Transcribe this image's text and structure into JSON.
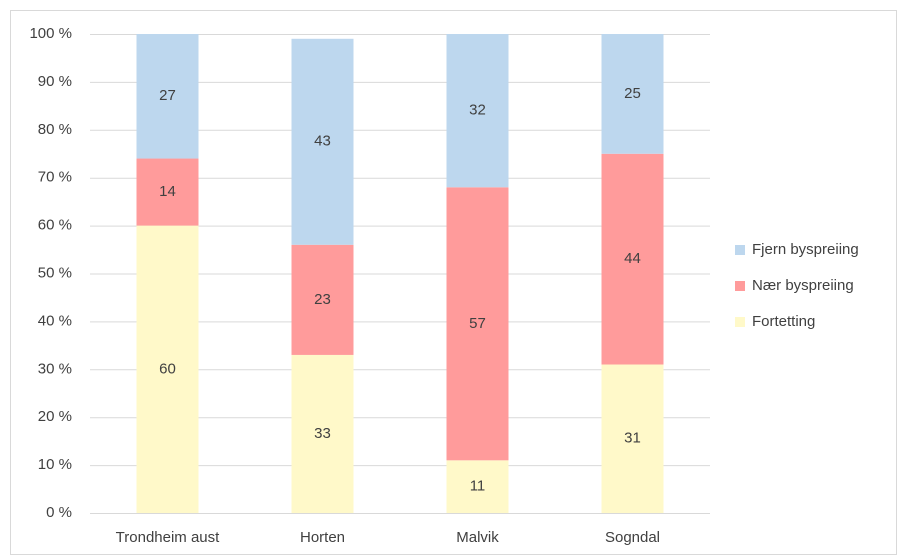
{
  "chart_data": {
    "type": "stacked_bar",
    "categories": [
      "Trondheim aust",
      "Horten",
      "Malvik",
      "Sogndal"
    ],
    "series": [
      {
        "name": "Fortetting",
        "color": "#fff9c9",
        "values": [
          60,
          33,
          11,
          31
        ]
      },
      {
        "name": "Nær byspreiing",
        "color": "#ff9b9b",
        "values": [
          14,
          23,
          57,
          44
        ]
      },
      {
        "name": "Fjern byspreiing",
        "color": "#bdd7ee",
        "values": [
          27,
          43,
          32,
          25
        ]
      }
    ],
    "ylim": [
      0,
      100
    ],
    "yticks": [
      {
        "value": 0,
        "label": "0 %"
      },
      {
        "value": 10,
        "label": "10 %"
      },
      {
        "value": 20,
        "label": "20 %"
      },
      {
        "value": 30,
        "label": "30 %"
      },
      {
        "value": 40,
        "label": "40 %"
      },
      {
        "value": 50,
        "label": "50 %"
      },
      {
        "value": 60,
        "label": "60 %"
      },
      {
        "value": 70,
        "label": "70 %"
      },
      {
        "value": 80,
        "label": "80 %"
      },
      {
        "value": 90,
        "label": "90 %"
      },
      {
        "value": 100,
        "label": "100 %"
      }
    ],
    "grid": true,
    "legend": "right"
  }
}
